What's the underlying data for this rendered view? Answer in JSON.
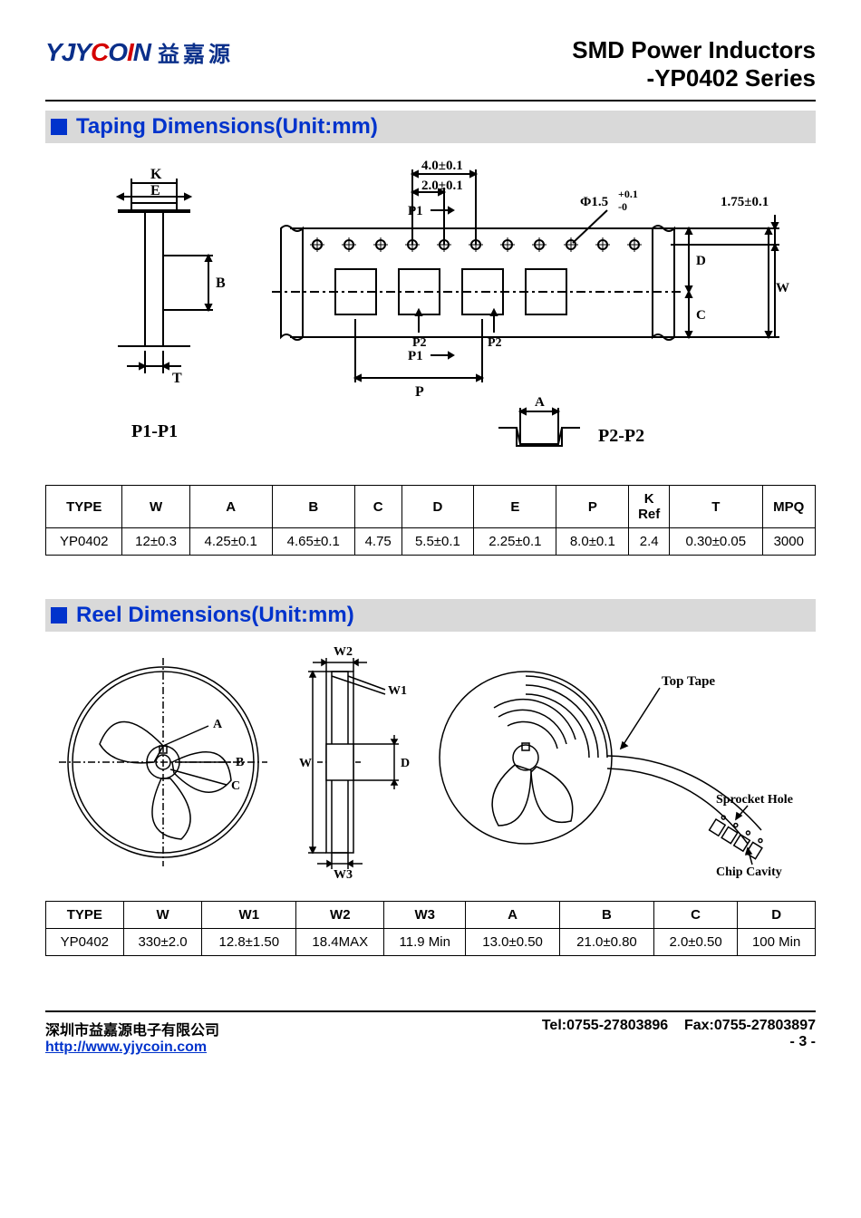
{
  "header": {
    "logo_latin_parts": [
      {
        "t": "Y",
        "c": "blue"
      },
      {
        "t": "J",
        "c": "blue"
      },
      {
        "t": "Y",
        "c": "blue"
      },
      {
        "t": "C",
        "c": "red"
      },
      {
        "t": "O",
        "c": "blue"
      },
      {
        "t": "I",
        "c": "red"
      },
      {
        "t": "N",
        "c": "blue"
      }
    ],
    "logo_cn": "益嘉源",
    "title_line1": "SMD Power Inductors",
    "title_line2": "-YP0402 Series"
  },
  "colors": {
    "accent": "#0033cc",
    "section_bg": "#d9d9d9",
    "logo_blue": "#0a2f8a",
    "logo_red": "#d40000"
  },
  "sections": {
    "taping": {
      "title": "Taping Dimensions(Unit:mm)",
      "diagram": {
        "labels": {
          "K": "K",
          "E": "E",
          "B": "B",
          "T": "T",
          "P1P1": "P1-P1",
          "top40": "4.0±0.1",
          "top20": "2.0±0.1",
          "P1": "P1",
          "P": "P",
          "P2": "P2",
          "phi": "Φ1.5",
          "phi_tol1": "+0.1",
          "phi_tol2": "-0",
          "h175": "1.75±0.1",
          "D": "D",
          "W": "W",
          "C": "C",
          "A": "A",
          "P2P2": "P2-P2"
        }
      },
      "table": {
        "columns": [
          "TYPE",
          "W",
          "A",
          "B",
          "C",
          "D",
          "E",
          "P",
          "K Ref",
          "T",
          "MPQ"
        ],
        "rows": [
          [
            "YP0402",
            "12±0.3",
            "4.25±0.1",
            "4.65±0.1",
            "4.75",
            "5.5±0.1",
            "2.25±0.1",
            "8.0±0.1",
            "2.4",
            "0.30±0.05",
            "3000"
          ]
        ]
      }
    },
    "reel": {
      "title": "Reel Dimensions(Unit:mm)",
      "diagram": {
        "labels": {
          "A": "A",
          "B": "B",
          "C": "C",
          "W": "W",
          "W1": "W1",
          "W2": "W2",
          "W3": "W3",
          "D": "D",
          "TopTape": "Top Tape",
          "Sprocket": "Sprocket Hole",
          "Chip": "Chip Cavity"
        }
      },
      "table": {
        "columns": [
          "TYPE",
          "W",
          "W1",
          "W2",
          "W3",
          "A",
          "B",
          "C",
          "D"
        ],
        "rows": [
          [
            "YP0402",
            "330±2.0",
            "12.8±1.50",
            "18.4MAX",
            "11.9 Min",
            "13.0±0.50",
            "21.0±0.80",
            "2.0±0.50",
            "100 Min"
          ]
        ]
      }
    }
  },
  "footer": {
    "company": "深圳市益嘉源电子有限公司",
    "url": "http://www.yjycoin.com",
    "tel_label": "Tel:",
    "tel": "0755-27803896",
    "fax_label": "Fax:",
    "fax": "0755-27803897",
    "page": "- 3 -"
  }
}
